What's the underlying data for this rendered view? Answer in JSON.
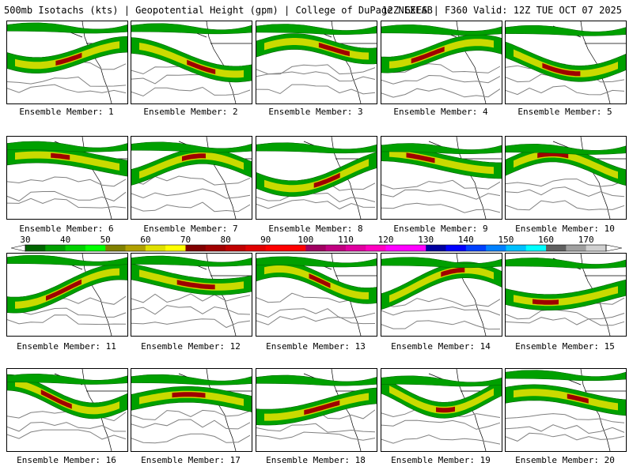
{
  "header": {
    "left": "500mb Isotachs (kts) | Geopotential Height (gpm) | College of DuPage NEXLAB",
    "right": "12Z GEFS | F360 Valid: 12Z TUE OCT 07 2025"
  },
  "panels": [
    {
      "label": "Ensemble Member: 1",
      "member": 1
    },
    {
      "label": "Ensemble Member: 2",
      "member": 2
    },
    {
      "label": "Ensemble Member: 3",
      "member": 3
    },
    {
      "label": "Ensemble Member: 4",
      "member": 4
    },
    {
      "label": "Ensemble Member: 5",
      "member": 5
    },
    {
      "label": "Ensemble Member: 6",
      "member": 6
    },
    {
      "label": "Ensemble Member: 7",
      "member": 7
    },
    {
      "label": "Ensemble Member: 8",
      "member": 8
    },
    {
      "label": "Ensemble Member: 9",
      "member": 9
    },
    {
      "label": "Ensemble Member: 10",
      "member": 10
    },
    {
      "label": "Ensemble Member: 11",
      "member": 11
    },
    {
      "label": "Ensemble Member: 12",
      "member": 12
    },
    {
      "label": "Ensemble Member: 13",
      "member": 13
    },
    {
      "label": "Ensemble Member: 14",
      "member": 14
    },
    {
      "label": "Ensemble Member: 15",
      "member": 15
    },
    {
      "label": "Ensemble Member: 16",
      "member": 16
    },
    {
      "label": "Ensemble Member: 17",
      "member": 17
    },
    {
      "label": "Ensemble Member: 18",
      "member": 18
    },
    {
      "label": "Ensemble Member: 19",
      "member": 19
    },
    {
      "label": "Ensemble Member: 20",
      "member": 20
    }
  ],
  "colorbar": {
    "units": "kts",
    "ticks": [
      "30",
      "40",
      "50",
      "60",
      "70",
      "80",
      "90",
      "100",
      "110",
      "120",
      "130",
      "140",
      "150",
      "160",
      "170"
    ],
    "colors": [
      "#006400",
      "#00a000",
      "#00d000",
      "#00ff00",
      "#808000",
      "#b0a000",
      "#e0e000",
      "#ffff00",
      "#800000",
      "#a00000",
      "#c00000",
      "#e00000",
      "#ff0000",
      "#ff0000",
      "#a00060",
      "#c00080",
      "#e000a0",
      "#ff00c0",
      "#ff00ff",
      "#ff00ff",
      "#0000a0",
      "#0000ff",
      "#0040ff",
      "#0080ff",
      "#00c0ff",
      "#00ffff",
      "#606060",
      "#a0a0a0",
      "#d0d0d0"
    ]
  },
  "colors": {
    "isotach_low": "#00a000",
    "isotach_mid": "#e0e000",
    "isotach_high": "#a00000",
    "height_contour": "#808080",
    "border": "#000000"
  }
}
